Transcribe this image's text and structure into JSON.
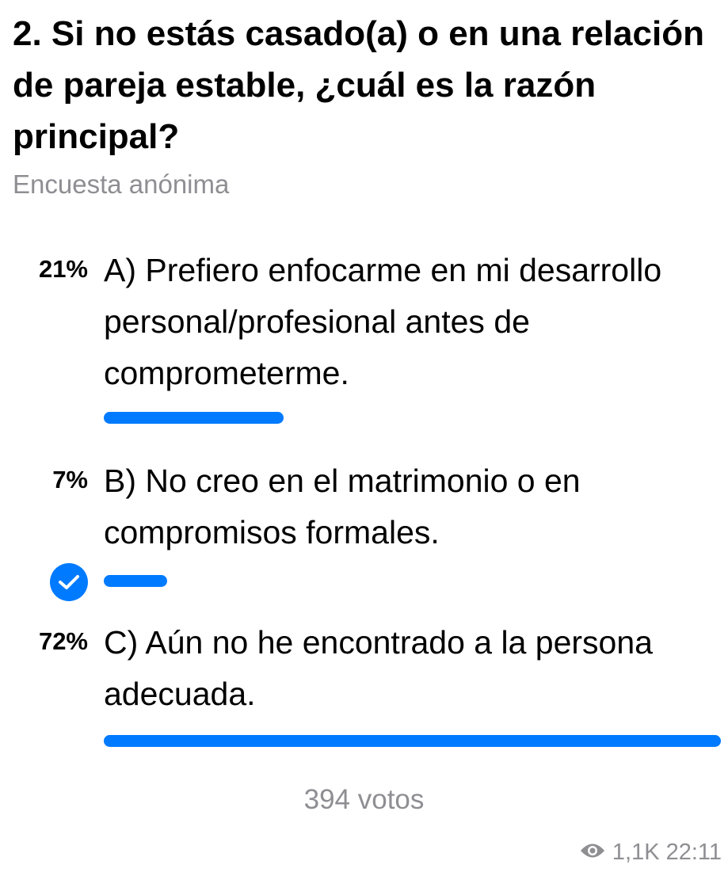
{
  "poll": {
    "title": "2. Si no estás casado(a) o en una relación de pareja estable, ¿cuál es la razón principal?",
    "subtitle": "Encuesta anónima",
    "options": [
      {
        "percent_label": "21%",
        "percent": 21,
        "text": "A) Prefiero enfocarme en mi desarrollo personal/profesional antes de comprometerme.",
        "selected": false
      },
      {
        "percent_label": "7%",
        "percent": 7,
        "text": "B) No creo en el matrimonio o en compromisos formales.",
        "selected": true
      },
      {
        "percent_label": "72%",
        "percent": 72,
        "text": "C) Aún no he encontrado a la persona adecuada.",
        "selected": false
      }
    ],
    "votes": "394 votos"
  },
  "footer": {
    "views": "1,1K",
    "time": "22:11",
    "icon": "eye-icon"
  },
  "colors": {
    "accent": "#007aff",
    "secondary_text": "#8e8e93"
  }
}
